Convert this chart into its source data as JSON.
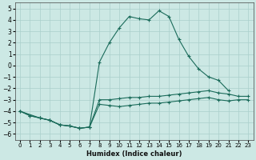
{
  "xlabel": "Humidex (Indice chaleur)",
  "xlim": [
    -0.5,
    23.5
  ],
  "ylim": [
    -6.5,
    5.5
  ],
  "xticks": [
    0,
    1,
    2,
    3,
    4,
    5,
    6,
    7,
    8,
    9,
    10,
    11,
    12,
    13,
    14,
    15,
    16,
    17,
    18,
    19,
    20,
    21,
    22,
    23
  ],
  "yticks": [
    -6,
    -5,
    -4,
    -3,
    -2,
    -1,
    0,
    1,
    2,
    3,
    4,
    5
  ],
  "background_color": "#cce8e4",
  "grid_color": "#aacfcb",
  "line_color": "#1a6b5a",
  "lines": [
    {
      "x": [
        0,
        2,
        3,
        4,
        5,
        6,
        7,
        8,
        9,
        10,
        11,
        12,
        13,
        14,
        15,
        16,
        17,
        18,
        19,
        20,
        21
      ],
      "y": [
        -4.0,
        -4.6,
        -4.8,
        -5.2,
        -5.3,
        -5.5,
        -5.4,
        0.3,
        2.0,
        3.3,
        4.3,
        4.1,
        4.0,
        4.8,
        4.3,
        2.3,
        0.8,
        -0.3,
        -1.0,
        -1.3,
        -2.2
      ]
    },
    {
      "x": [
        0,
        1,
        2,
        3,
        4,
        5,
        6,
        7,
        8,
        9,
        10,
        11,
        12,
        13,
        14,
        15,
        16,
        17,
        18,
        19,
        20,
        21,
        22,
        23
      ],
      "y": [
        -4.0,
        -4.4,
        -4.6,
        -4.8,
        -5.2,
        -5.3,
        -5.5,
        -5.4,
        -3.0,
        -3.0,
        -2.9,
        -2.8,
        -2.8,
        -2.7,
        -2.7,
        -2.6,
        -2.5,
        -2.4,
        -2.3,
        -2.2,
        -2.4,
        -2.5,
        -2.7,
        -2.7
      ]
    },
    {
      "x": [
        0,
        1,
        2,
        3,
        4,
        5,
        6,
        7,
        8,
        9,
        10,
        11,
        12,
        13,
        14,
        15,
        16,
        17,
        18,
        19,
        20,
        21,
        22,
        23
      ],
      "y": [
        -4.0,
        -4.4,
        -4.6,
        -4.8,
        -5.2,
        -5.3,
        -5.5,
        -5.4,
        -3.4,
        -3.5,
        -3.6,
        -3.5,
        -3.4,
        -3.3,
        -3.3,
        -3.2,
        -3.1,
        -3.0,
        -2.9,
        -2.8,
        -3.0,
        -3.1,
        -3.0,
        -3.0
      ]
    }
  ]
}
